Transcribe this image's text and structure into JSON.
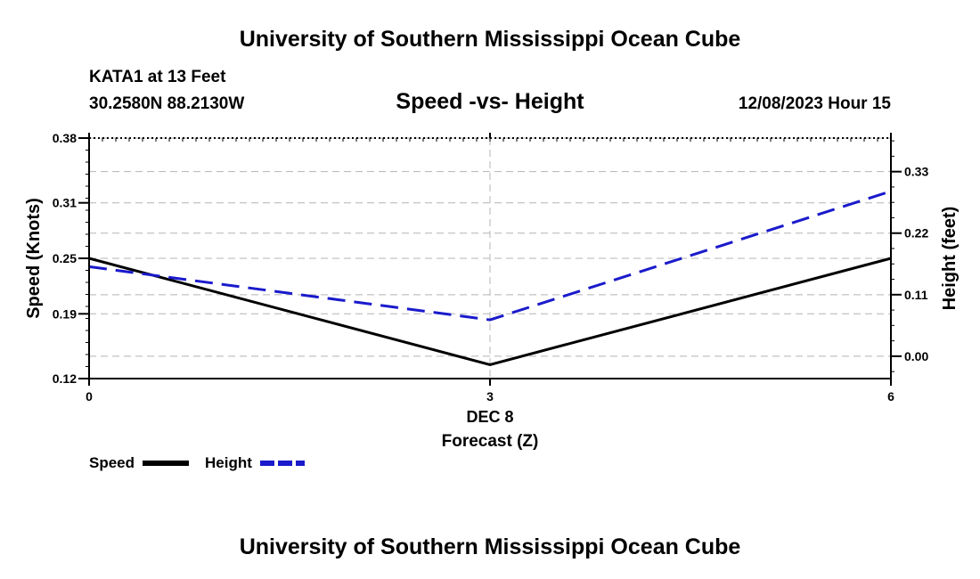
{
  "page": {
    "top_title": "University of Southern Mississippi Ocean Cube",
    "bottom_title": "University of Southern Mississippi Ocean Cube",
    "station": "KATA1 at 13 Feet",
    "coords": "30.2580N  88.2130W",
    "subtitle": "Speed -vs- Height",
    "datetime": "12/08/2023 Hour 15"
  },
  "colors": {
    "speed": "#000000",
    "height": "#1a1acc",
    "grid": "#b4b4b4"
  },
  "chart_data": {
    "type": "line",
    "title": "Speed -vs- Height",
    "x": [
      0,
      3,
      6
    ],
    "x_ticks": [
      "0",
      "3",
      "6"
    ],
    "x_sublabel": "DEC 8",
    "xlabel": "Forecast (Z)",
    "xlim": [
      0,
      6
    ],
    "ylabel_left": "Speed (Knots)",
    "ylim_left": [
      0.12,
      0.38
    ],
    "yticks_left": [
      "0.38",
      "0.31",
      "0.25",
      "0.19",
      "0.12"
    ],
    "ytick_values_left": [
      0.38,
      0.31,
      0.25,
      0.19,
      0.12
    ],
    "ylabel_right": "Height (feet)",
    "ylim_right": [
      -0.04,
      0.39
    ],
    "yticks_right": [
      "0.33",
      "0.22",
      "0.11",
      "0.00"
    ],
    "ytick_values_right": [
      0.33,
      0.22,
      0.11,
      0.0
    ],
    "series": [
      {
        "name": "Speed",
        "axis": "left",
        "style": "solid",
        "values": [
          0.25,
          0.135,
          0.25
        ]
      },
      {
        "name": "Height",
        "axis": "right",
        "style": "dashed",
        "values": [
          0.16,
          0.065,
          0.295
        ]
      }
    ],
    "legend": {
      "placement": "bottom-left",
      "items": [
        "Speed",
        "Height"
      ]
    },
    "grid": true
  }
}
